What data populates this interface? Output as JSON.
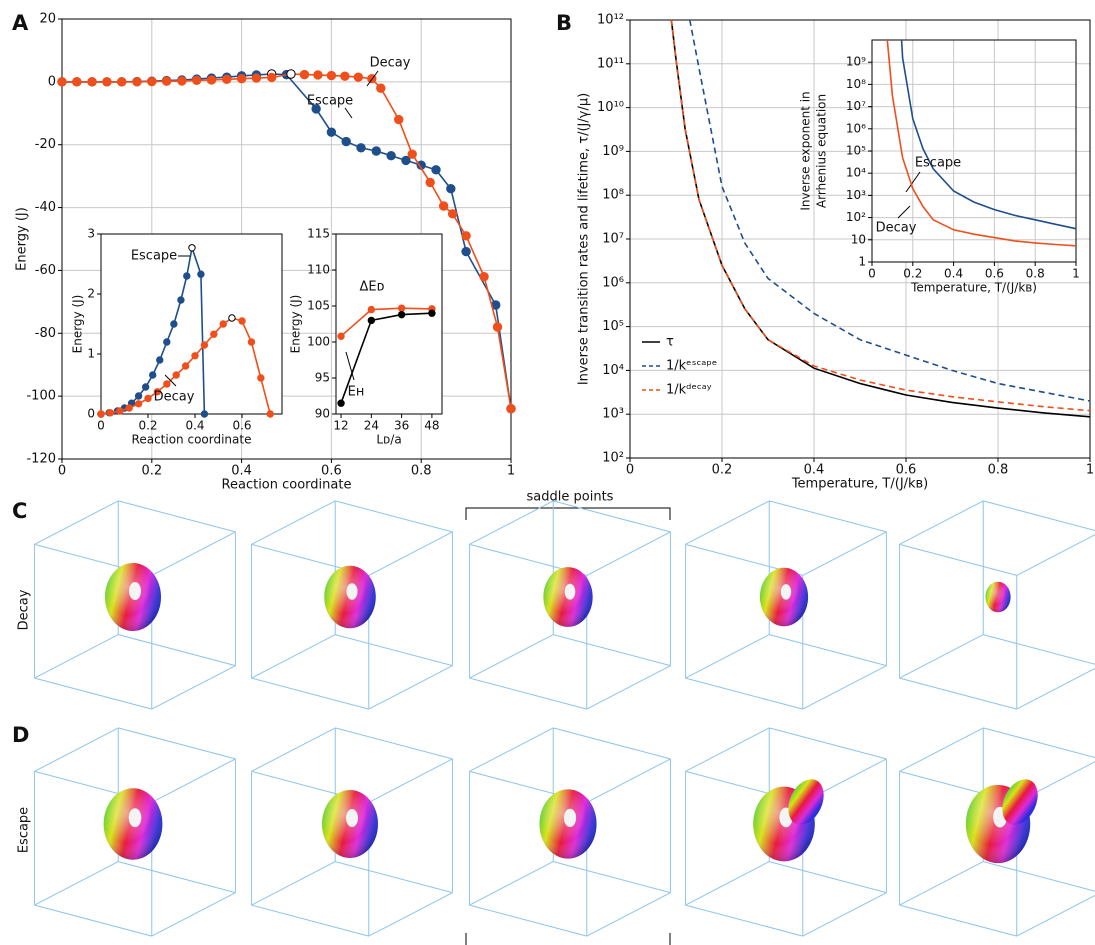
{
  "panel_labels": [
    "A",
    "B",
    "C",
    "D"
  ],
  "renders": {
    "group_label": "saddle points",
    "row_labels": [
      "Decay",
      "Escape"
    ]
  },
  "chart_data": [
    {
      "type": "line",
      "xlabel": "Reaction coordinate",
      "ylabel": "Energy (J)",
      "xlim": [
        0,
        1
      ],
      "ylim": [
        -120,
        20
      ],
      "xticks": [
        0,
        0.2,
        0.4,
        0.6,
        0.8,
        1
      ],
      "yticks": [
        -120,
        -100,
        -80,
        -60,
        -40,
        -20,
        0,
        20
      ],
      "grid": true,
      "markers": true,
      "legend": false,
      "series": [
        {
          "name": "Escape",
          "color": "#1f4e8c",
          "hollow": [
            14
          ],
          "x": [
            0,
            0.033,
            0.067,
            0.1,
            0.133,
            0.167,
            0.2,
            0.233,
            0.267,
            0.3,
            0.333,
            0.367,
            0.4,
            0.433,
            0.467,
            0.5,
            0.566,
            0.6,
            0.633,
            0.666,
            0.7,
            0.733,
            0.766,
            0.8,
            0.833,
            0.866,
            0.9,
            0.966,
            1
          ],
          "values": [
            0,
            0,
            0,
            0,
            0,
            0.1,
            0.2,
            0.4,
            0.6,
            0.9,
            1.2,
            1.5,
            1.9,
            2.2,
            2.5,
            2.3,
            -8.6,
            -16,
            -19,
            -21,
            -22,
            -23.5,
            -25,
            -26.5,
            -28,
            -34,
            -54,
            -71,
            -104
          ]
        },
        {
          "name": "Decay",
          "color": "#f04e1a",
          "hollow": [
            15
          ],
          "x": [
            0,
            0.033,
            0.067,
            0.1,
            0.133,
            0.167,
            0.2,
            0.233,
            0.267,
            0.3,
            0.333,
            0.367,
            0.4,
            0.433,
            0.467,
            0.51,
            0.54,
            0.57,
            0.6,
            0.63,
            0.66,
            0.69,
            0.71,
            0.75,
            0.78,
            0.82,
            0.85,
            0.87,
            0.9,
            0.94,
            0.97,
            1
          ],
          "values": [
            0,
            0,
            0,
            0,
            0,
            0,
            0.1,
            0.2,
            0.3,
            0.5,
            0.6,
            0.8,
            1,
            1.2,
            1.4,
            2.5,
            2.3,
            2.2,
            2,
            1.8,
            1.5,
            1,
            -2,
            -12,
            -23,
            -32,
            -39.5,
            -42,
            -49,
            -62,
            -78,
            -104
          ]
        }
      ]
    },
    {
      "type": "line",
      "xlabel": "Reaction coordinate",
      "ylabel": "Energy (J)",
      "xlim": [
        0,
        0.77
      ],
      "ylim": [
        0,
        3
      ],
      "xticks": [
        0,
        0.2,
        0.4,
        0.6
      ],
      "yticks": [
        0,
        1,
        2,
        3
      ],
      "grid": false,
      "markers": true,
      "legend": false,
      "series": [
        {
          "name": "Escape",
          "color": "#1f4e8c",
          "hollow": [
            13
          ],
          "x": [
            0,
            0.035,
            0.07,
            0.1,
            0.13,
            0.16,
            0.19,
            0.22,
            0.25,
            0.28,
            0.31,
            0.34,
            0.365,
            0.387,
            0.425,
            0.44
          ],
          "values": [
            0,
            0.02,
            0.05,
            0.1,
            0.18,
            0.3,
            0.45,
            0.65,
            0.9,
            1.2,
            1.5,
            1.9,
            2.3,
            2.77,
            2.33,
            0
          ]
        },
        {
          "name": "Decay",
          "color": "#f04e1a",
          "hollow": [
            14
          ],
          "x": [
            0,
            0.04,
            0.08,
            0.12,
            0.16,
            0.2,
            0.24,
            0.28,
            0.32,
            0.36,
            0.4,
            0.44,
            0.48,
            0.52,
            0.557,
            0.6,
            0.64,
            0.68,
            0.72
          ],
          "values": [
            0,
            0.02,
            0.05,
            0.1,
            0.17,
            0.26,
            0.37,
            0.5,
            0.65,
            0.8,
            0.97,
            1.15,
            1.33,
            1.5,
            1.6,
            1.55,
            1.2,
            0.6,
            0
          ]
        }
      ]
    },
    {
      "type": "line",
      "xlabel": "Lᴅ/a",
      "ylabel": "Energy (J)",
      "xlim": [
        10,
        52
      ],
      "ylim": [
        90,
        115
      ],
      "xticks": [
        12,
        24,
        36,
        48
      ],
      "yticks": [
        90,
        95,
        100,
        105,
        110,
        115
      ],
      "grid": false,
      "markers": true,
      "legend": false,
      "series": [
        {
          "name": "ΔEᴅ",
          "color": "#f04e1a",
          "x": [
            12,
            24,
            36,
            48
          ],
          "values": [
            100.8,
            104.5,
            104.7,
            104.6
          ]
        },
        {
          "name": "Eʜ",
          "color": "#000000",
          "x": [
            12,
            24,
            36,
            48
          ],
          "values": [
            91.5,
            103,
            103.8,
            104
          ]
        }
      ]
    },
    {
      "type": "line",
      "xlabel": "Temperature, T/(J/kʙ)",
      "ylabel": "Inverse transition rates and lifetime, τ/(J/γ/μ)",
      "xlim": [
        0,
        1
      ],
      "ylim": [
        100,
        1000000000000
      ],
      "log_y": true,
      "xticks": [
        0,
        0.2,
        0.4,
        0.6,
        0.8,
        1
      ],
      "yticks": [
        {
          "value": 100,
          "label": "10²"
        },
        {
          "value": 1000,
          "label": "10³"
        },
        {
          "value": 10000,
          "label": "10⁴"
        },
        {
          "value": 100000,
          "label": "10⁵"
        },
        {
          "value": 1000000,
          "label": "10⁶"
        },
        {
          "value": 10000000,
          "label": "10⁷"
        },
        {
          "value": 100000000,
          "label": "10⁸"
        },
        {
          "value": 1000000000,
          "label": "10⁹"
        },
        {
          "value": 10000000000,
          "label": "10¹⁰"
        },
        {
          "value": 100000000000,
          "label": "10¹¹"
        },
        {
          "value": 1000000000000,
          "label": "10¹²"
        }
      ],
      "grid": true,
      "markers": false,
      "legend": "lower left",
      "series": [
        {
          "name": "τ",
          "color": "#000000",
          "line_style": "solid",
          "x": [
            0.09,
            0.1,
            0.12,
            0.15,
            0.2,
            0.25,
            0.3,
            0.4,
            0.5,
            0.6,
            0.7,
            0.8,
            0.9,
            1
          ],
          "values": [
            1000000000000,
            126000000000,
            3160000000,
            79400000,
            2510000,
            251000,
            50100,
            11200,
            5010,
            2750,
            1862,
            1380,
            1072,
            871
          ]
        },
        {
          "name": "1/kᵉˢᶜᵃᵖᵉ",
          "color": "#1f4e8c",
          "line_style": "dashed",
          "x": [
            0.13,
            0.15,
            0.2,
            0.25,
            0.3,
            0.4,
            0.5,
            0.6,
            0.7,
            0.8,
            0.9,
            1
          ],
          "values": [
            1000000000000,
            79400000000,
            158000000,
            7940000,
            1260000,
            200000,
            50100,
            22400,
            10000,
            5010,
            3160,
            2000
          ]
        },
        {
          "name": "1/kᵈᵉᶜᵃʸ",
          "color": "#f04e1a",
          "line_style": "dashed",
          "x": [
            0.09,
            0.1,
            0.12,
            0.15,
            0.2,
            0.25,
            0.3,
            0.4,
            0.5,
            0.6,
            0.7,
            0.8,
            0.9,
            1
          ],
          "values": [
            1000000000000,
            126000000000,
            3160000000,
            79400000,
            2510000,
            251000,
            50100,
            12600,
            6030,
            3550,
            2510,
            1910,
            1480,
            1200
          ]
        }
      ]
    },
    {
      "type": "line",
      "xlabel": "Temperature, T/(J/kʙ)",
      "ylabel": [
        "Inverse exponent in",
        "Arrhenius equation"
      ],
      "xlim": [
        0,
        1
      ],
      "ylim": [
        1,
        10000000000
      ],
      "log_y": true,
      "xticks": [
        0,
        0.2,
        0.4,
        0.6,
        0.8,
        1
      ],
      "yticks": [
        1,
        10,
        {
          "value": 100,
          "label": "10²"
        },
        {
          "value": 1000,
          "label": "10³"
        },
        {
          "value": 10000,
          "label": "10⁴"
        },
        {
          "value": 100000,
          "label": "10⁵"
        },
        {
          "value": 1000000,
          "label": "10⁶"
        },
        {
          "value": 10000000,
          "label": "10⁷"
        },
        {
          "value": 100000000,
          "label": "10⁸"
        },
        {
          "value": 1000000000,
          "label": "10⁹"
        }
      ],
      "grid": true,
      "markers": false,
      "legend": false,
      "series": [
        {
          "name": "Escape",
          "color": "#1f4e8c",
          "line_style": "solid",
          "x": [
            0.145,
            0.15,
            0.2,
            0.25,
            0.3,
            0.4,
            0.5,
            0.6,
            0.7,
            0.8,
            0.9,
            1
          ],
          "values": [
            10000000000,
            1580000000,
            2820000,
            126000,
            15800,
            1580,
            501,
            229,
            126,
            79.4,
            50.1,
            31.6
          ]
        },
        {
          "name": "Decay",
          "color": "#f04e1a",
          "line_style": "solid",
          "x": [
            0.075,
            0.1,
            0.15,
            0.2,
            0.25,
            0.3,
            0.4,
            0.5,
            0.6,
            0.7,
            0.8,
            0.9,
            1
          ],
          "values": [
            10000000000,
            31600000,
            50100,
            2000,
            316,
            79.4,
            28.2,
            17.8,
            12.6,
            8.91,
            7.24,
            6.17,
            5.37
          ]
        }
      ]
    }
  ]
}
